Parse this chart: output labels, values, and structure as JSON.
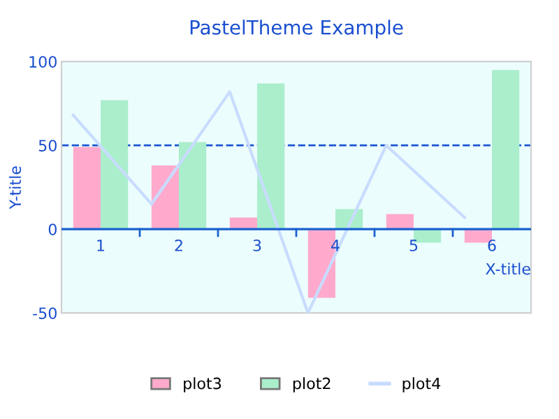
{
  "chart_data": {
    "type": "bar",
    "title": "PastelTheme Example",
    "xlabel": "X-title",
    "ylabel": "Y-title",
    "categories": [
      "1",
      "2",
      "3",
      "4",
      "5",
      "6"
    ],
    "series": [
      {
        "name": "plot3",
        "color": "#ffaacc",
        "values": [
          49,
          38,
          7,
          -41,
          9,
          -8
        ]
      },
      {
        "name": "plot2",
        "color": "#aaeecc",
        "values": [
          77,
          52,
          87,
          12,
          -8,
          95
        ]
      },
      {
        "name": "plot4",
        "type": "line",
        "color": "#c8dcff",
        "values": [
          68,
          15,
          82,
          -50,
          50,
          7
        ]
      }
    ],
    "ylim": [
      -50,
      100
    ],
    "yticks": [
      -50,
      0,
      50,
      100
    ],
    "ref_lines": [
      {
        "axis": "y",
        "value": 50,
        "color": "#1a55d0",
        "line_style": "dashed"
      }
    ],
    "grid": false,
    "legend": "bottom"
  }
}
